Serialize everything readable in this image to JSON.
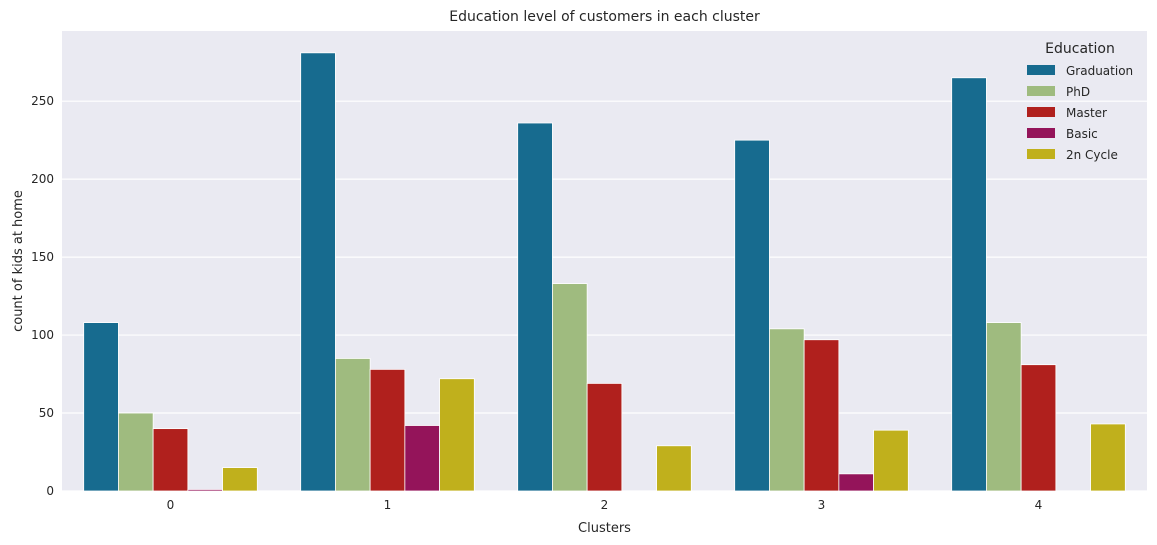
{
  "chart_data": {
    "type": "bar",
    "title": "Education level of customers in each cluster",
    "xlabel": "Clusters",
    "ylabel": "count of kids at home",
    "categories": [
      "0",
      "1",
      "2",
      "3",
      "4"
    ],
    "ylim": [
      0,
      295
    ],
    "yticks": [
      0,
      50,
      100,
      150,
      200,
      250
    ],
    "grid": true,
    "background": "#eaeaf2",
    "legend": {
      "title": "Education",
      "placement": "top-right"
    },
    "series": [
      {
        "name": "Graduation",
        "color": "#176b8f",
        "values": [
          108,
          281,
          236,
          225,
          265
        ]
      },
      {
        "name": "PhD",
        "color": "#9fbb7f",
        "values": [
          50,
          85,
          133,
          104,
          108
        ]
      },
      {
        "name": "Master",
        "color": "#b0201d",
        "values": [
          40,
          78,
          69,
          97,
          81
        ]
      },
      {
        "name": "Basic",
        "color": "#94145a",
        "values": [
          1,
          42,
          0,
          11,
          0
        ]
      },
      {
        "name": "2n Cycle",
        "color": "#c0b01c",
        "values": [
          15,
          72,
          29,
          39,
          43
        ]
      }
    ]
  }
}
